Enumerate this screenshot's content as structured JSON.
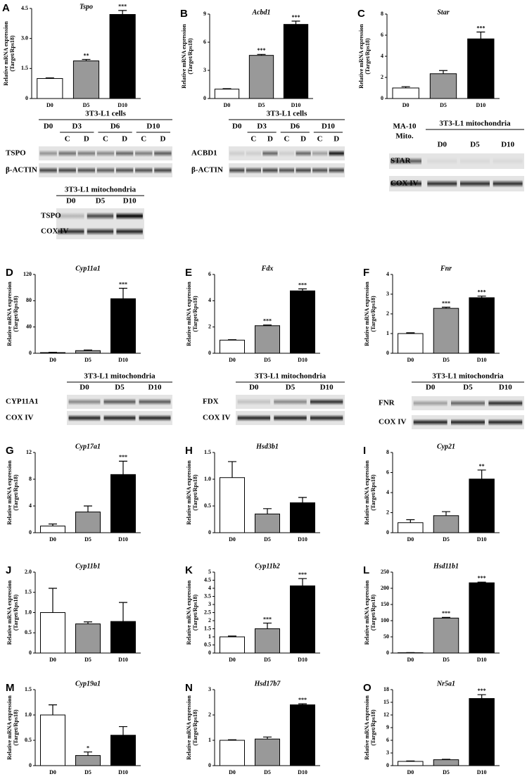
{
  "chart_data": [
    {
      "type": "bar",
      "panel": "A",
      "title": "Tspo",
      "ylabel": [
        "Relative mRNA expression",
        "(Target/Rps18)"
      ],
      "categories": [
        "D0",
        "D5",
        "D10"
      ],
      "values": [
        1.0,
        1.88,
        4.2
      ],
      "errors": [
        0.03,
        0.07,
        0.2
      ],
      "sig": [
        null,
        "**",
        "***"
      ],
      "colors": [
        "#ffffff",
        "#999999",
        "#000000"
      ],
      "ylim": [
        0,
        4.5
      ],
      "yticks": [
        0,
        1.5,
        {
          "value": 3,
          "label": "3.0"
        },
        4.5
      ]
    },
    {
      "type": "bar",
      "panel": "B",
      "title": "Acbd1",
      "ylabel": [
        "Relative mRNA expression",
        "(Target/Rps18)"
      ],
      "categories": [
        "D0",
        "D5",
        "D10"
      ],
      "values": [
        1.0,
        4.6,
        7.9
      ],
      "errors": [
        0.05,
        0.1,
        0.35
      ],
      "sig": [
        null,
        "***",
        "***"
      ],
      "colors": [
        "#ffffff",
        "#999999",
        "#000000"
      ],
      "ylim": [
        0,
        9
      ],
      "yticks": [
        0,
        3,
        6,
        9
      ]
    },
    {
      "type": "bar",
      "panel": "C",
      "title": "Star",
      "ylabel": [
        "Relative mRNA expression",
        "(Target/Rps18)"
      ],
      "categories": [
        "D0",
        "D5",
        "D10"
      ],
      "values": [
        1.0,
        2.35,
        5.65
      ],
      "errors": [
        0.12,
        0.3,
        0.65
      ],
      "sig": [
        null,
        null,
        "***"
      ],
      "colors": [
        "#ffffff",
        "#999999",
        "#000000"
      ],
      "ylim": [
        0,
        8
      ],
      "yticks": [
        0,
        2,
        4,
        6,
        8
      ]
    },
    {
      "type": "bar",
      "panel": "D",
      "title": "Cyp11a1",
      "ylabel": [
        "Relative mRNA expression",
        "(Target/Rps18)"
      ],
      "categories": [
        "D0",
        "D5",
        "D10"
      ],
      "values": [
        1,
        4,
        83
      ],
      "errors": [
        0.5,
        1,
        16
      ],
      "sig": [
        null,
        null,
        "***"
      ],
      "colors": [
        "#ffffff",
        "#999999",
        "#000000"
      ],
      "ylim": [
        0,
        120
      ],
      "yticks": [
        0,
        40,
        80,
        120
      ]
    },
    {
      "type": "bar",
      "panel": "E",
      "title": "Fdx",
      "ylabel": [
        "Relative mRNA expression",
        "(Target/Rps18)"
      ],
      "categories": [
        "D0",
        "D5",
        "D10"
      ],
      "values": [
        1,
        2.1,
        4.75
      ],
      "errors": [
        0.03,
        0.05,
        0.15
      ],
      "sig": [
        null,
        "***",
        "***"
      ],
      "colors": [
        "#ffffff",
        "#999999",
        "#000000"
      ],
      "ylim": [
        0,
        6
      ],
      "yticks": [
        0,
        2,
        4,
        6
      ]
    },
    {
      "type": "bar",
      "panel": "F",
      "title": "Fnr",
      "ylabel": [
        "Relative mRNA expression",
        "(Target/Rps18)"
      ],
      "categories": [
        "D0",
        "D5",
        "D10"
      ],
      "values": [
        1,
        2.28,
        2.82
      ],
      "errors": [
        0.04,
        0.06,
        0.08
      ],
      "sig": [
        null,
        "***",
        "***"
      ],
      "colors": [
        "#ffffff",
        "#999999",
        "#000000"
      ],
      "ylim": [
        0,
        4
      ],
      "yticks": [
        0,
        1,
        2,
        3,
        4
      ]
    },
    {
      "type": "bar",
      "panel": "G",
      "title": "Cyp17a1",
      "ylabel": [
        "Relative mRNA expression",
        "(Target/Rps18)"
      ],
      "categories": [
        "D0",
        "D5",
        "D10"
      ],
      "values": [
        1.0,
        3.1,
        8.7
      ],
      "errors": [
        0.3,
        0.9,
        2.0
      ],
      "sig": [
        null,
        null,
        "***"
      ],
      "colors": [
        "#ffffff",
        "#999999",
        "#000000"
      ],
      "ylim": [
        0,
        12
      ],
      "yticks": [
        0,
        4,
        8,
        12
      ]
    },
    {
      "type": "bar",
      "panel": "H",
      "title": "Hsd3b1",
      "ylabel": [
        "Relative mRNA expression",
        "(Target/Rps18)"
      ],
      "categories": [
        "D0",
        "D5",
        "D10"
      ],
      "values": [
        1.03,
        0.35,
        0.56
      ],
      "errors": [
        0.3,
        0.1,
        0.1
      ],
      "sig": [
        null,
        null,
        null
      ],
      "colors": [
        "#ffffff",
        "#999999",
        "#000000"
      ],
      "ylim": [
        0,
        1.5
      ],
      "yticks": [
        0,
        0.5,
        {
          "value": 1,
          "label": "1.0"
        },
        1.5
      ]
    },
    {
      "type": "bar",
      "panel": "I",
      "title": "Cyp21",
      "ylabel": [
        "Relative mRNA expression",
        "(Target/Rps18)"
      ],
      "categories": [
        "D0",
        "D5",
        "D10"
      ],
      "values": [
        1.0,
        1.7,
        5.35
      ],
      "errors": [
        0.3,
        0.4,
        0.9
      ],
      "sig": [
        null,
        null,
        "**"
      ],
      "colors": [
        "#ffffff",
        "#999999",
        "#000000"
      ],
      "ylim": [
        0,
        8
      ],
      "yticks": [
        0,
        2,
        4,
        6,
        8
      ]
    },
    {
      "type": "bar",
      "panel": "J",
      "title": "Cyp11b1",
      "ylabel": [
        "Relative mRNA expression",
        "(Target/Rps18)"
      ],
      "categories": [
        "D0",
        "D5",
        "D10"
      ],
      "values": [
        1.0,
        0.72,
        0.78
      ],
      "errors": [
        0.6,
        0.05,
        0.47
      ],
      "sig": [
        null,
        null,
        null
      ],
      "colors": [
        "#ffffff",
        "#999999",
        "#000000"
      ],
      "ylim": [
        0,
        2
      ],
      "yticks": [
        0,
        0.5,
        {
          "value": 1,
          "label": "1.0"
        },
        1.5,
        {
          "value": 2,
          "label": "2.0"
        }
      ]
    },
    {
      "type": "bar",
      "panel": "K",
      "title": "Cyp11b2",
      "ylabel": [
        "Relative mRNA expression",
        "(Target/Rps18)"
      ],
      "categories": [
        "D0",
        "D5",
        "D10"
      ],
      "values": [
        1.0,
        1.5,
        4.15
      ],
      "errors": [
        0.05,
        0.35,
        0.45
      ],
      "sig": [
        null,
        "***",
        "***"
      ],
      "colors": [
        "#ffffff",
        "#999999",
        "#000000"
      ],
      "ylim": [
        0,
        5
      ],
      "yticks": [
        0,
        0.5,
        1,
        1.5,
        2,
        2.5,
        3,
        3.5,
        4,
        4.5,
        5
      ]
    },
    {
      "type": "bar",
      "panel": "L",
      "title": "Hsd11b1",
      "ylabel": [
        "Relative mRNA expression",
        "(Target/Rps18)"
      ],
      "categories": [
        "D0",
        "D5",
        "D10"
      ],
      "values": [
        1,
        108,
        217
      ],
      "errors": [
        0.5,
        2,
        2
      ],
      "sig": [
        null,
        "***",
        "***"
      ],
      "colors": [
        "#ffffff",
        "#999999",
        "#000000"
      ],
      "ylim": [
        0,
        250
      ],
      "yticks": [
        0,
        50,
        100,
        150,
        200,
        250
      ]
    },
    {
      "type": "bar",
      "panel": "M",
      "title": "Cyp19a1",
      "ylabel": [
        "Relative mRNA expression",
        "(Target/Rps18)"
      ],
      "categories": [
        "D0",
        "D5",
        "D10"
      ],
      "values": [
        1.0,
        0.2,
        0.6
      ],
      "errors": [
        0.2,
        0.07,
        0.17
      ],
      "sig": [
        null,
        "*",
        null
      ],
      "colors": [
        "#ffffff",
        "#999999",
        "#000000"
      ],
      "ylim": [
        0,
        1.5
      ],
      "yticks": [
        0,
        0.5,
        {
          "value": 1,
          "label": "1.0"
        },
        1.5
      ]
    },
    {
      "type": "bar",
      "panel": "N",
      "title": "Hsd17b7",
      "ylabel": [
        "Relative mRNA expression",
        "(Target/Rps18)"
      ],
      "categories": [
        "D0",
        "D5",
        "D10"
      ],
      "values": [
        1.0,
        1.05,
        2.4
      ],
      "errors": [
        0.02,
        0.08,
        0.04
      ],
      "sig": [
        null,
        null,
        "***"
      ],
      "colors": [
        "#ffffff",
        "#999999",
        "#000000"
      ],
      "ylim": [
        0,
        3
      ],
      "yticks": [
        0,
        1,
        2,
        3
      ]
    },
    {
      "type": "bar",
      "panel": "O",
      "title": "Nr5a1",
      "ylabel": [
        "Relative mRNA expression",
        "(Target/Rps18)"
      ],
      "categories": [
        "D0",
        "D5",
        "D10"
      ],
      "values": [
        1,
        1.4,
        15.9
      ],
      "errors": [
        0.1,
        0.1,
        0.9
      ],
      "sig": [
        null,
        null,
        "***"
      ],
      "colors": [
        "#ffffff",
        "#999999",
        "#000000"
      ],
      "ylim": [
        0,
        18
      ],
      "yticks": [
        0,
        3,
        6,
        9,
        12,
        15,
        18
      ]
    }
  ],
  "blots": [
    {
      "title": "3T3-L1 cells",
      "columns": [
        "D0",
        "D3",
        "D6",
        "D10"
      ],
      "sub": [
        "C",
        "D",
        "C",
        "D",
        "C",
        "D"
      ],
      "rows": [
        "TSPO",
        "β-ACTIN"
      ]
    },
    {
      "title": "3T3-L1 mitochondria",
      "columns": [
        "D0",
        "D5",
        "D10"
      ],
      "rows": [
        "TSPO",
        "COX IV"
      ]
    },
    {
      "title": "3T3-L1 cells",
      "columns": [
        "D0",
        "D3",
        "D6",
        "D10"
      ],
      "sub": [
        "C",
        "D",
        "C",
        "D",
        "C",
        "D"
      ],
      "rows": [
        "ACBD1",
        "β-ACTIN"
      ]
    },
    {
      "title": "3T3-L1 mitochondria",
      "extra": [
        "MA-10",
        "Mito."
      ],
      "columns": [
        "D0",
        "D5",
        "D10"
      ],
      "rows": [
        "STAR",
        "COX IV"
      ]
    },
    {
      "title": "3T3-L1 mitochondria",
      "columns": [
        "D0",
        "D5",
        "D10"
      ],
      "rows": [
        "CYP11A1",
        "COX IV"
      ]
    },
    {
      "title": "3T3-L1 mitochondria",
      "columns": [
        "D0",
        "D5",
        "D10"
      ],
      "rows": [
        "FDX",
        "COX IV"
      ]
    },
    {
      "title": "3T3-L1 mitochondria",
      "columns": [
        "D0",
        "D5",
        "D10"
      ],
      "rows": [
        "FNR",
        "COX IV"
      ]
    }
  ]
}
